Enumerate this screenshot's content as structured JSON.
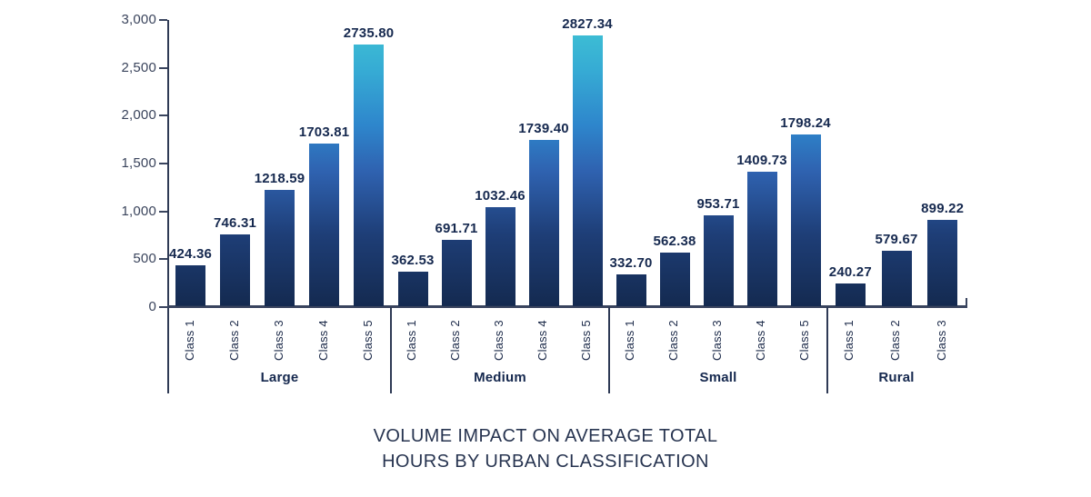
{
  "chart_data": {
    "type": "bar",
    "title": "VOLUME IMPACT ON AVERAGE TOTAL HOURS BY URBAN CLASSIFICATION",
    "title_lines": [
      "VOLUME IMPACT ON AVERAGE TOTAL",
      "HOURS BY URBAN CLASSIFICATION"
    ],
    "xlabel": "",
    "ylabel": "",
    "ylim": [
      0,
      3000
    ],
    "grid": false,
    "legend": false,
    "yticks": [
      0,
      500,
      1000,
      1500,
      2000,
      2500,
      3000
    ],
    "ytick_labels": [
      "0",
      "500",
      "1,000",
      "1,500",
      "2,000",
      "2,500",
      "3,000"
    ],
    "groups": [
      {
        "label": "Large",
        "categories": [
          "Class 1",
          "Class 2",
          "Class 3",
          "Class 4",
          "Class 5"
        ],
        "values": [
          424.36,
          746.31,
          1218.59,
          1703.81,
          2735.8
        ],
        "value_labels": [
          "424.36",
          "746.31",
          "1218.59",
          "1703.81",
          "2735.80"
        ]
      },
      {
        "label": "Medium",
        "categories": [
          "Class 1",
          "Class 2",
          "Class 3",
          "Class 4",
          "Class 5"
        ],
        "values": [
          362.53,
          691.71,
          1032.46,
          1739.4,
          2827.34
        ],
        "value_labels": [
          "362.53",
          "691.71",
          "1032.46",
          "1739.40",
          "2827.34"
        ]
      },
      {
        "label": "Small",
        "categories": [
          "Class 1",
          "Class 2",
          "Class 3",
          "Class 4",
          "Class 5"
        ],
        "values": [
          332.7,
          562.38,
          953.71,
          1409.73,
          1798.24
        ],
        "value_labels": [
          "332.70",
          "562.38",
          "953.71",
          "1409.73",
          "1798.24"
        ]
      },
      {
        "label": "Rural",
        "categories": [
          "Class 1",
          "Class 2",
          "Class 3"
        ],
        "values": [
          240.27,
          579.67,
          899.22
        ],
        "value_labels": [
          "240.27",
          "579.67",
          "899.22"
        ]
      }
    ],
    "colors": {
      "bar_gradient": [
        "#142A50",
        "#1E3E77",
        "#2F62B0",
        "#2E86CC",
        "#36ABD4",
        "#3FC4D4"
      ],
      "axis": "#39445E",
      "value_label": "#16294F",
      "tick_text": "#3A445C",
      "class_label": "#1D2B4A",
      "group_label": "#15284E",
      "title": "#273450",
      "background": "#FFFFFF"
    }
  }
}
